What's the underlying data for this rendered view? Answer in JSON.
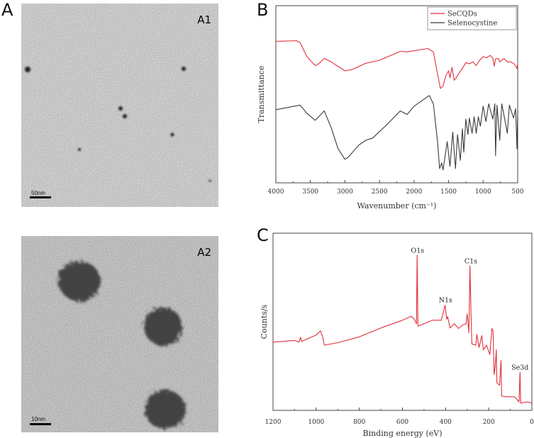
{
  "panels": {
    "a": {
      "letter": "A",
      "a1_label": "A1",
      "a1_scale": "50nm",
      "a2_label": "A2",
      "a2_scale": "10nm"
    },
    "b": {
      "letter": "B"
    },
    "c": {
      "letter": "C"
    }
  },
  "colors": {
    "red": "#e0303a",
    "dark": "#3a3a3a"
  },
  "chart_data": [
    {
      "panel": "B",
      "type": "line",
      "xlabel": "Wavenumber (cm⁻¹)",
      "ylabel": "Transmittance",
      "xlim": [
        4000,
        500
      ],
      "x_reversed": true,
      "xticks": [
        "4000",
        "3500",
        "3000",
        "2500",
        "2000",
        "1500",
        "1000",
        "500"
      ],
      "grid": false,
      "legend": "top-right",
      "series": [
        {
          "name": "SeCQDs",
          "color": "#e0303a",
          "points": [
            [
              4000,
              79.9
            ],
            [
              3700,
              80.2
            ],
            [
              3650,
              79.2
            ],
            [
              3550,
              71.2
            ],
            [
              3430,
              66.2
            ],
            [
              3380,
              67.2
            ],
            [
              3300,
              70.2
            ],
            [
              3200,
              68.3
            ],
            [
              3000,
              63.2
            ],
            [
              2900,
              63.9
            ],
            [
              2700,
              67.5
            ],
            [
              2500,
              69.2
            ],
            [
              2200,
              74.2
            ],
            [
              2100,
              73.9
            ],
            [
              1800,
              75.8
            ],
            [
              1720,
              73.9
            ],
            [
              1650,
              59.3
            ],
            [
              1620,
              53.3
            ],
            [
              1580,
              54.6
            ],
            [
              1540,
              60.6
            ],
            [
              1500,
              63.2
            ],
            [
              1480,
              59.3
            ],
            [
              1450,
              65.2
            ],
            [
              1420,
              57.9
            ],
            [
              1390,
              59.3
            ],
            [
              1350,
              61.9
            ],
            [
              1300,
              64.6
            ],
            [
              1250,
              67.9
            ],
            [
              1200,
              67.2
            ],
            [
              1150,
              68.3
            ],
            [
              1100,
              66.2
            ],
            [
              1050,
              69.2
            ],
            [
              1000,
              71.2
            ],
            [
              950,
              70.6
            ],
            [
              900,
              71.9
            ],
            [
              860,
              70.6
            ],
            [
              840,
              65.9
            ],
            [
              820,
              69.9
            ],
            [
              780,
              70.2
            ],
            [
              760,
              68.3
            ],
            [
              700,
              70.2
            ],
            [
              650,
              68.3
            ],
            [
              600,
              68.3
            ],
            [
              550,
              67.2
            ],
            [
              510,
              64.6
            ],
            [
              500,
              67.5
            ]
          ]
        },
        {
          "name": "Selenocystine",
          "color": "#3a3a3a",
          "points": [
            [
              4000,
              41.3
            ],
            [
              3650,
              43.9
            ],
            [
              3550,
              39.3
            ],
            [
              3430,
              35.3
            ],
            [
              3300,
              40.6
            ],
            [
              3200,
              31.3
            ],
            [
              3100,
              19.3
            ],
            [
              3000,
              13.3
            ],
            [
              2950,
              14.6
            ],
            [
              2800,
              21.3
            ],
            [
              2700,
              24.0
            ],
            [
              2600,
              25.3
            ],
            [
              2400,
              32.6
            ],
            [
              2200,
              40.6
            ],
            [
              2100,
              38.6
            ],
            [
              2000,
              43.3
            ],
            [
              1780,
              49.3
            ],
            [
              1720,
              44.6
            ],
            [
              1660,
              23.3
            ],
            [
              1630,
              8.0
            ],
            [
              1600,
              11.3
            ],
            [
              1580,
              7.3
            ],
            [
              1520,
              23.3
            ],
            [
              1480,
              9.3
            ],
            [
              1440,
              28.6
            ],
            [
              1400,
              8.0
            ],
            [
              1370,
              27.3
            ],
            [
              1330,
              12.7
            ],
            [
              1300,
              30.6
            ],
            [
              1280,
              17.3
            ],
            [
              1250,
              36.0
            ],
            [
              1220,
              27.3
            ],
            [
              1200,
              36.6
            ],
            [
              1160,
              28.0
            ],
            [
              1130,
              37.3
            ],
            [
              1100,
              28.0
            ],
            [
              1070,
              37.3
            ],
            [
              1040,
              32.0
            ],
            [
              1000,
              43.3
            ],
            [
              960,
              34.6
            ],
            [
              920,
              44.6
            ],
            [
              860,
              36.0
            ],
            [
              830,
              44.6
            ],
            [
              820,
              15.3
            ],
            [
              800,
              43.9
            ],
            [
              760,
              24.0
            ],
            [
              730,
              44.6
            ],
            [
              650,
              28.0
            ],
            [
              620,
              43.9
            ],
            [
              560,
              36.6
            ],
            [
              530,
              41.9
            ],
            [
              510,
              19.3
            ],
            [
              500,
              40.6
            ]
          ]
        }
      ]
    },
    {
      "panel": "C",
      "type": "line",
      "xlabel": "Binding energy (eV)",
      "ylabel": "Counts/s",
      "xlim": [
        1200,
        0
      ],
      "x_reversed": true,
      "xticks": [
        "1200",
        "1000",
        "800",
        "600",
        "400",
        "200",
        "0"
      ],
      "grid": false,
      "series": [
        {
          "color": "#e0303a",
          "points": [
            [
              1200,
              38.5
            ],
            [
              1100,
              39.5
            ],
            [
              1080,
              38.5
            ],
            [
              1072,
              41.3
            ],
            [
              1068,
              38.9
            ],
            [
              1000,
              42.5
            ],
            [
              980,
              44.9
            ],
            [
              970,
              41.5
            ],
            [
              962,
              36.8
            ],
            [
              900,
              38.2
            ],
            [
              800,
              41.5
            ],
            [
              700,
              46.5
            ],
            [
              600,
              50.9
            ],
            [
              560,
              53.1
            ],
            [
              545,
              51.5
            ],
            [
              535,
              48.9
            ],
            [
              532,
              87.6
            ],
            [
              528,
              47.5
            ],
            [
              500,
              48.9
            ],
            [
              460,
              50.9
            ],
            [
              420,
              50.9
            ],
            [
              402,
              59.3
            ],
            [
              395,
              51.5
            ],
            [
              390,
              52.9
            ],
            [
              380,
              46.5
            ],
            [
              360,
              48.9
            ],
            [
              340,
              46.2
            ],
            [
              320,
              48.2
            ],
            [
              305,
              48.9
            ],
            [
              300,
              54.5
            ],
            [
              292,
              43.8
            ],
            [
              287,
              81.6
            ],
            [
              282,
              54.2
            ],
            [
              278,
              37.5
            ],
            [
              260,
              36.8
            ],
            [
              255,
              42.9
            ],
            [
              245,
              35.5
            ],
            [
              232,
              42.2
            ],
            [
              225,
              34.2
            ],
            [
              210,
              36.8
            ],
            [
              195,
              31.5
            ],
            [
              185,
              46.2
            ],
            [
              180,
              44.9
            ],
            [
              175,
              20.2
            ],
            [
              170,
              24.8
            ],
            [
              165,
              34.2
            ],
            [
              162,
              15.5
            ],
            [
              150,
              14.2
            ],
            [
              143,
              28.2
            ],
            [
              140,
              8.1
            ],
            [
              120,
              7.7
            ],
            [
              80,
              7.7
            ],
            [
              60,
              4.8
            ],
            [
              55,
              21.5
            ],
            [
              52,
              4.1
            ],
            [
              20,
              4.8
            ],
            [
              0,
              4.1
            ]
          ]
        }
      ],
      "annotations": [
        {
          "text": "O1s",
          "x": 530,
          "y": 89
        },
        {
          "text": "C1s",
          "x": 283,
          "y": 83
        },
        {
          "text": "N1s",
          "x": 400,
          "y": 61
        },
        {
          "text": "Se3d",
          "x": 55,
          "y": 23
        }
      ]
    }
  ]
}
